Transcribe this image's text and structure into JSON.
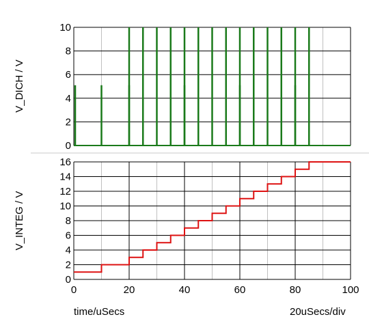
{
  "chart_data": [
    {
      "type": "line",
      "ylabel": "V_DICH / V",
      "ylim": [
        0,
        10
      ],
      "yticks": [
        0,
        2,
        4,
        6,
        8,
        10
      ],
      "xlim": [
        0,
        100
      ],
      "grid": true,
      "color": "#1a7a1a",
      "series": [
        {
          "pulses": [
            {
              "t": 0.5,
              "v": 5.1
            },
            {
              "t": 10,
              "v": 5.1
            },
            {
              "t": 20,
              "v": 10
            },
            {
              "t": 20,
              "v": 5.1
            },
            {
              "t": 25,
              "v": 10
            },
            {
              "t": 30,
              "v": 10
            },
            {
              "t": 35,
              "v": 10
            },
            {
              "t": 40,
              "v": 10
            },
            {
              "t": 40,
              "v": 5.1
            },
            {
              "t": 45,
              "v": 10
            },
            {
              "t": 50,
              "v": 10
            },
            {
              "t": 55,
              "v": 10
            },
            {
              "t": 60,
              "v": 10
            },
            {
              "t": 60,
              "v": 5.1
            },
            {
              "t": 65,
              "v": 10
            },
            {
              "t": 70,
              "v": 10
            },
            {
              "t": 75,
              "v": 10
            },
            {
              "t": 80,
              "v": 10
            },
            {
              "t": 80,
              "v": 5.1
            },
            {
              "t": 85,
              "v": 10
            }
          ]
        }
      ]
    },
    {
      "type": "line",
      "ylabel": "V_INTEG / V",
      "ylim": [
        0,
        16
      ],
      "yticks": [
        0,
        2,
        4,
        6,
        8,
        10,
        12,
        14,
        16
      ],
      "xlim": [
        0,
        100
      ],
      "xticks": [
        0,
        20,
        40,
        60,
        80,
        100
      ],
      "grid": true,
      "color": "#dd1111",
      "series": [
        {
          "x": [
            0,
            10,
            20,
            25,
            30,
            35,
            40,
            45,
            50,
            55,
            60,
            65,
            70,
            75,
            80,
            85,
            100
          ],
          "y": [
            1,
            2,
            3,
            4,
            5,
            6,
            7,
            8,
            9,
            10,
            11,
            12,
            13,
            14,
            15,
            16,
            16
          ]
        }
      ]
    }
  ],
  "footer": {
    "xlabel": "time/uSecs",
    "scale": "20uSecs/div"
  }
}
